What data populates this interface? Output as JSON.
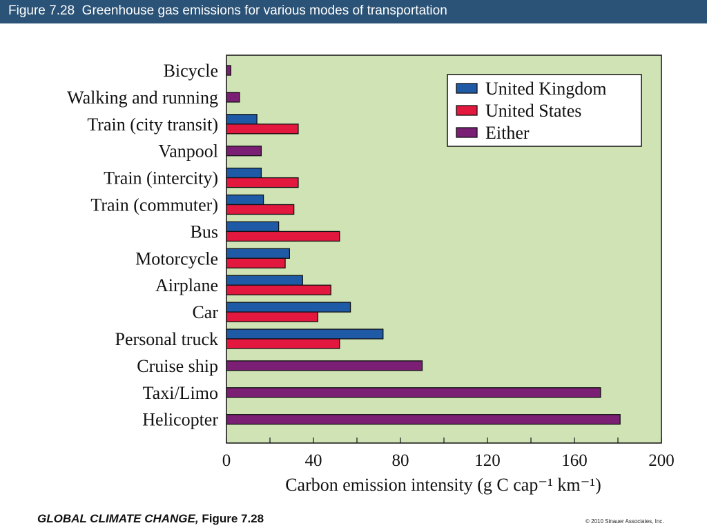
{
  "header": {
    "title": "Figure 7.28  Greenhouse gas emissions for various modes of transportation"
  },
  "footer": {
    "book_title": "GLOBAL CLIMATE CHANGE,",
    "figure_ref": "Figure 7.28",
    "copyright": "© 2010 Sinauer Associates, Inc."
  },
  "chart_data": {
    "type": "bar",
    "orientation": "horizontal",
    "categories": [
      "Bicycle",
      "Walking and running",
      "Train (city transit)",
      "Vanpool",
      "Train (intercity)",
      "Train (commuter)",
      "Bus",
      "Motorcycle",
      "Airplane",
      "Car",
      "Personal truck",
      "Cruise ship",
      "Taxi/Limo",
      "Helicopter"
    ],
    "series": [
      {
        "name": "United Kingdom",
        "color": "#1f5aa6",
        "values": [
          null,
          null,
          14,
          null,
          16,
          17,
          24,
          29,
          35,
          57,
          72,
          null,
          null,
          null
        ]
      },
      {
        "name": "United States",
        "color": "#e2183f",
        "values": [
          null,
          null,
          33,
          null,
          33,
          31,
          52,
          27,
          48,
          42,
          52,
          null,
          null,
          null
        ]
      },
      {
        "name": "Either",
        "color": "#7a1f74",
        "values": [
          2,
          6,
          null,
          16,
          null,
          null,
          null,
          null,
          null,
          null,
          null,
          90,
          172,
          181
        ]
      }
    ],
    "xlabel": "Carbon emission intensity (g C cap⁻¹ km⁻¹)",
    "xlim": [
      0,
      200
    ],
    "xticks": [
      0,
      40,
      80,
      120,
      160,
      200
    ],
    "grid": false,
    "legend_position": "top-right",
    "plot_background": "#cfe3b4"
  }
}
